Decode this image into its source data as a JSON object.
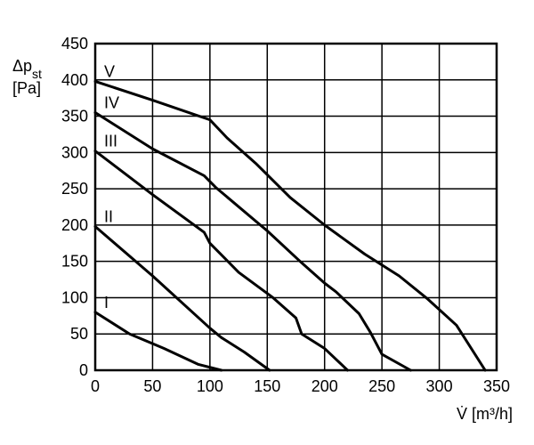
{
  "chart_data": {
    "type": "line",
    "ylabel_line1": "Δp",
    "ylabel_sub": "st",
    "ylabel_line2": "[Pa]",
    "xlabel": "V̇ [m³/h]",
    "xlim": [
      0,
      350
    ],
    "ylim": [
      0,
      450
    ],
    "x_ticks": [
      0,
      50,
      100,
      150,
      200,
      250,
      300,
      350
    ],
    "y_ticks": [
      0,
      50,
      100,
      150,
      200,
      250,
      300,
      350,
      400,
      450
    ],
    "grid": true,
    "legend": "inline labels near curves",
    "series": [
      {
        "name": "I",
        "points": [
          [
            0,
            80
          ],
          [
            30,
            50
          ],
          [
            60,
            30
          ],
          [
            90,
            8
          ],
          [
            110,
            0
          ]
        ]
      },
      {
        "name": "II",
        "points": [
          [
            0,
            198
          ],
          [
            50,
            130
          ],
          [
            100,
            58
          ],
          [
            110,
            45
          ],
          [
            130,
            25
          ],
          [
            152,
            0
          ]
        ]
      },
      {
        "name": "III",
        "points": [
          [
            0,
            302
          ],
          [
            50,
            242
          ],
          [
            95,
            190
          ],
          [
            100,
            175
          ],
          [
            125,
            135
          ],
          [
            155,
            100
          ],
          [
            175,
            72
          ],
          [
            180,
            50
          ],
          [
            200,
            30
          ],
          [
            220,
            0
          ]
        ]
      },
      {
        "name": "IV",
        "points": [
          [
            0,
            355
          ],
          [
            50,
            305
          ],
          [
            95,
            268
          ],
          [
            105,
            252
          ],
          [
            150,
            192
          ],
          [
            180,
            148
          ],
          [
            200,
            120
          ],
          [
            210,
            108
          ],
          [
            230,
            78
          ],
          [
            240,
            52
          ],
          [
            250,
            22
          ],
          [
            275,
            0
          ]
        ]
      },
      {
        "name": "V",
        "points": [
          [
            0,
            398
          ],
          [
            50,
            372
          ],
          [
            100,
            345
          ],
          [
            115,
            320
          ],
          [
            140,
            285
          ],
          [
            170,
            238
          ],
          [
            200,
            200
          ],
          [
            235,
            160
          ],
          [
            265,
            130
          ],
          [
            290,
            98
          ],
          [
            315,
            62
          ],
          [
            340,
            0
          ]
        ]
      }
    ]
  }
}
